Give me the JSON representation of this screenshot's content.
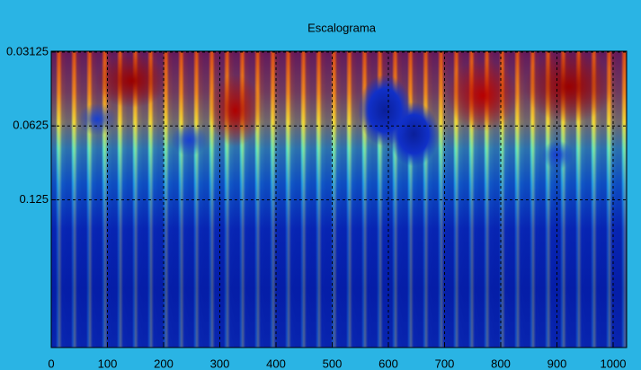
{
  "chart_data": {
    "type": "heatmap",
    "title": "Escalograma",
    "xlim": [
      0,
      1024
    ],
    "xticks": [
      0,
      100,
      200,
      300,
      400,
      500,
      600,
      700,
      800,
      900,
      1000
    ],
    "ylim": [
      0.5,
      0.031
    ],
    "log_y": true,
    "yticks": [
      {
        "value": 0.03125,
        "label": "0.03125"
      },
      0.0625,
      0.125
    ],
    "grid": true
  }
}
